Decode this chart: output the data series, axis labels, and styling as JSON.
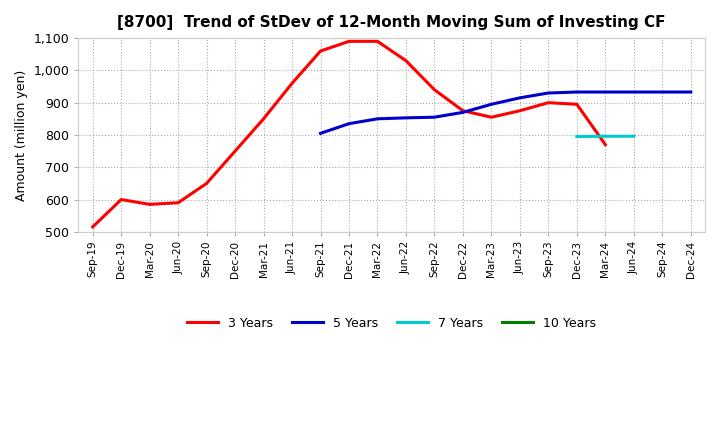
{
  "title": "[8700]  Trend of StDev of 12-Month Moving Sum of Investing CF",
  "ylabel": "Amount (million yen)",
  "ylim": [
    500,
    1100
  ],
  "yticks": [
    500,
    600,
    700,
    800,
    900,
    1000,
    1100
  ],
  "background_color": "#ffffff",
  "grid_color": "#aaaaaa",
  "xtick_labels": [
    "Sep-19",
    "Dec-19",
    "Mar-20",
    "Jun-20",
    "Sep-20",
    "Dec-20",
    "Mar-21",
    "Jun-21",
    "Sep-21",
    "Dec-21",
    "Mar-22",
    "Jun-22",
    "Sep-22",
    "Dec-22",
    "Mar-23",
    "Jun-23",
    "Sep-23",
    "Dec-23",
    "Mar-24",
    "Jun-24",
    "Sep-24",
    "Dec-24"
  ],
  "series": {
    "3years": {
      "color": "#ff0000",
      "label": "3 Years",
      "x": [
        0,
        1,
        2,
        3,
        4,
        5,
        6,
        7,
        8,
        9,
        10,
        11,
        12,
        13,
        14,
        15,
        16,
        17,
        18
      ],
      "y": [
        515,
        600,
        585,
        590,
        650,
        750,
        850,
        960,
        1060,
        1090,
        1090,
        1030,
        940,
        875,
        855,
        875,
        900,
        895,
        770
      ]
    },
    "5years": {
      "color": "#0000cc",
      "label": "5 Years",
      "x": [
        8,
        9,
        10,
        11,
        12,
        13,
        14,
        15,
        16,
        17,
        18,
        19,
        20,
        21
      ],
      "y": [
        805,
        835,
        850,
        853,
        855,
        870,
        895,
        915,
        930,
        933,
        933,
        933,
        933,
        933
      ]
    },
    "7years": {
      "color": "#00cccc",
      "label": "7 Years",
      "x": [
        17,
        18,
        19
      ],
      "y": [
        795,
        796,
        796
      ]
    },
    "10years": {
      "color": "#008000",
      "label": "10 Years",
      "x": [],
      "y": []
    }
  },
  "linewidth": 2.2
}
